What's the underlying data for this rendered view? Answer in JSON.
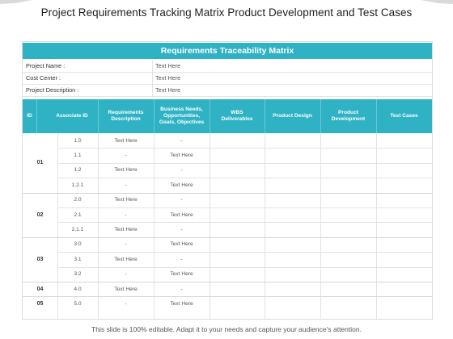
{
  "page": {
    "title": "Project Requirements Tracking Matrix Product Development and Test Cases",
    "footer": "This slide is 100% editable. Adapt it to your needs and capture your audience’s attention.",
    "accent_color": "#2eb2c4"
  },
  "matrix": {
    "banner": "Requirements Traceability Matrix",
    "info_rows": [
      {
        "label": "Project Name :",
        "value": "Text Here"
      },
      {
        "label": "Cost Center :",
        "value": "Text Here"
      },
      {
        "label": "Project Description :",
        "value": "Text Here"
      }
    ],
    "columns": [
      "ID",
      "Associate ID",
      "Requirements Description",
      "Business Needs, Opportunities, Goals, Objectives",
      "WBS Deliverables",
      "Product Design",
      "Product Development",
      "Test Cases"
    ],
    "groups": [
      {
        "id": "01",
        "rows": [
          {
            "associate_id": "1.0",
            "requirements": "Text Here",
            "business_needs": "-"
          },
          {
            "associate_id": "1.1",
            "requirements": "-",
            "business_needs": "Text Here"
          },
          {
            "associate_id": "1.2",
            "requirements": "Text Here",
            "business_needs": "-"
          },
          {
            "associate_id": "1.2.1",
            "requirements": "-",
            "business_needs": "Text Here"
          }
        ]
      },
      {
        "id": "02",
        "rows": [
          {
            "associate_id": "2.0",
            "requirements": "Text Here",
            "business_needs": "-"
          },
          {
            "associate_id": "2.1",
            "requirements": "-",
            "business_needs": "Text Here"
          },
          {
            "associate_id": "2.1.1",
            "requirements": "Text Here",
            "business_needs": "-"
          }
        ]
      },
      {
        "id": "03",
        "rows": [
          {
            "associate_id": "3.0",
            "requirements": "-",
            "business_needs": "Text Here"
          },
          {
            "associate_id": "3.1",
            "requirements": "Text Here",
            "business_needs": "-"
          },
          {
            "associate_id": "3.2",
            "requirements": "-",
            "business_needs": "Text Here"
          }
        ]
      },
      {
        "id": "04",
        "rows": [
          {
            "associate_id": "4.0",
            "requirements": "Text Here",
            "business_needs": "-"
          }
        ]
      },
      {
        "id": "05",
        "rows": [
          {
            "associate_id": "5.0",
            "requirements": "-",
            "business_needs": "Text Here"
          }
        ]
      }
    ]
  }
}
